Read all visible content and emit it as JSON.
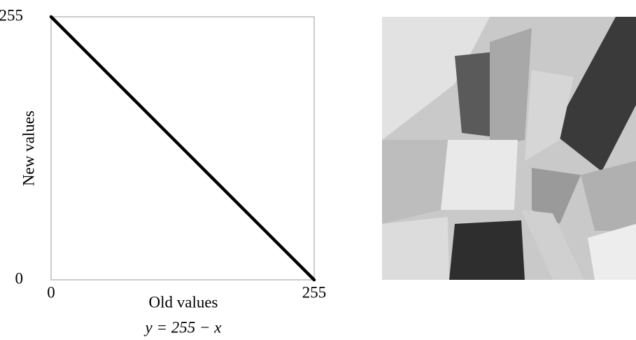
{
  "chart_data": {
    "type": "line",
    "x": [
      0,
      255
    ],
    "series": [
      {
        "name": "y = 255 − x",
        "color": "#000000",
        "values": [
          255,
          0
        ]
      }
    ],
    "xlim": [
      0,
      255
    ],
    "ylim": [
      0,
      255
    ],
    "xticks": [
      0,
      255
    ],
    "yticks": [
      0,
      255
    ],
    "xlabel": "Old values",
    "ylabel": "New values",
    "caption": "y = 255 − x",
    "grid": false
  }
}
